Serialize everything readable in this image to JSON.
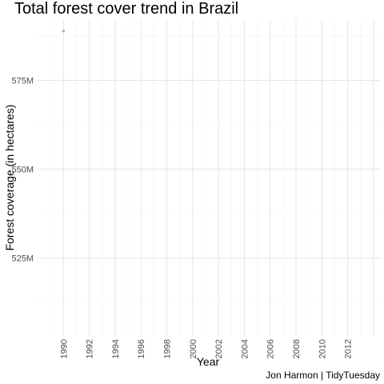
{
  "chart_data": {
    "type": "scatter",
    "title": "Total forest cover trend in Brazil",
    "xlabel": "Year",
    "ylabel": "Forest coverage (in hectares)",
    "caption": "Jon Harmon | TidyTuesday",
    "x_ticks": [
      "1990",
      "1992",
      "1994",
      "1996",
      "1998",
      "2000",
      "2002",
      "2004",
      "2006",
      "2008",
      "2010",
      "2012"
    ],
    "y_ticks": [
      {
        "value": 525000000,
        "label": "525M"
      },
      {
        "value": 550000000,
        "label": "550M"
      },
      {
        "value": 575000000,
        "label": "575M"
      }
    ],
    "xlim": [
      1988,
      2014.5
    ],
    "ylim": [
      503000000,
      592000000
    ],
    "grid": true,
    "series": [
      {
        "color": "#f4a460",
        "points": [
          {
            "x": 1990,
            "y": 588900000
          }
        ]
      }
    ]
  }
}
